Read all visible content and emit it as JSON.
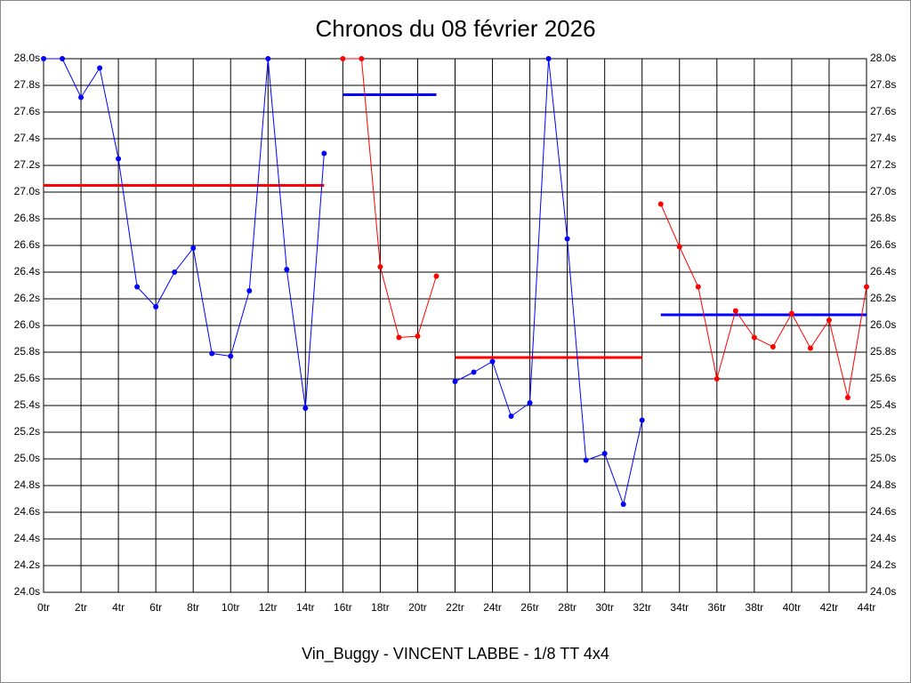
{
  "chart_data": {
    "type": "line",
    "title": "Chronos du 08 février 2026",
    "subtitle": "Vin_Buggy - VINCENT LABBE - 1/8 TT 4x4",
    "x": [
      0,
      1,
      2,
      3,
      4,
      5,
      6,
      7,
      8,
      9,
      10,
      11,
      12,
      13,
      14,
      15,
      16,
      17,
      18,
      19,
      20,
      21,
      22,
      23,
      24,
      25,
      26,
      27,
      28,
      29,
      30,
      31,
      32,
      33,
      34,
      35,
      36,
      37,
      38,
      39,
      40,
      41,
      42,
      43,
      44
    ],
    "series": [
      {
        "color": "#0000ff",
        "values": [
          28.0,
          28.0,
          27.71,
          27.93,
          27.25,
          26.29,
          26.14,
          26.4,
          26.58,
          25.79,
          25.77,
          26.26,
          28.0,
          26.42,
          25.38,
          27.29,
          null,
          null,
          null,
          null,
          null,
          null,
          25.58,
          25.65,
          25.73,
          25.32,
          25.42,
          28.0,
          26.65,
          24.99,
          25.04,
          24.66,
          25.29,
          null,
          null,
          null,
          null,
          null,
          null,
          null,
          null,
          null,
          null,
          null,
          null
        ]
      },
      {
        "color": "#ff0000",
        "values": [
          null,
          null,
          null,
          null,
          null,
          null,
          null,
          null,
          null,
          null,
          null,
          null,
          null,
          null,
          null,
          null,
          28.0,
          28.0,
          26.44,
          25.91,
          25.92,
          26.37,
          null,
          null,
          null,
          null,
          null,
          null,
          null,
          null,
          null,
          null,
          null,
          26.91,
          26.59,
          26.29,
          25.6,
          26.11,
          25.91,
          25.84,
          26.09,
          25.83,
          26.04,
          25.46,
          26.29
        ]
      }
    ],
    "averages": [
      {
        "color": "#ff0000",
        "value": 27.05,
        "x": [
          0,
          15
        ]
      },
      {
        "color": "#0000ff",
        "value": 27.73,
        "x": [
          16,
          21
        ]
      },
      {
        "color": "#ff0000",
        "value": 25.76,
        "x": [
          22,
          32
        ]
      },
      {
        "color": "#0000ff",
        "value": 26.08,
        "x": [
          33,
          44
        ]
      }
    ],
    "xlim": [
      0,
      44
    ],
    "xticks": [
      {
        "value": 0,
        "label": "0tr"
      },
      {
        "value": 2,
        "label": "2tr"
      },
      {
        "value": 4,
        "label": "4tr"
      },
      {
        "value": 6,
        "label": "6tr"
      },
      {
        "value": 8,
        "label": "8tr"
      },
      {
        "value": 10,
        "label": "10tr"
      },
      {
        "value": 12,
        "label": "12tr"
      },
      {
        "value": 14,
        "label": "14tr"
      },
      {
        "value": 16,
        "label": "16tr"
      },
      {
        "value": 18,
        "label": "18tr"
      },
      {
        "value": 20,
        "label": "20tr"
      },
      {
        "value": 22,
        "label": "22tr"
      },
      {
        "value": 24,
        "label": "24tr"
      },
      {
        "value": 26,
        "label": "26tr"
      },
      {
        "value": 28,
        "label": "28tr"
      },
      {
        "value": 30,
        "label": "30tr"
      },
      {
        "value": 32,
        "label": "32tr"
      },
      {
        "value": 34,
        "label": "34tr"
      },
      {
        "value": 36,
        "label": "36tr"
      },
      {
        "value": 38,
        "label": "38tr"
      },
      {
        "value": 40,
        "label": "40tr"
      },
      {
        "value": 42,
        "label": "42tr"
      },
      {
        "value": 44,
        "label": "44tr"
      }
    ],
    "ylim": [
      24.0,
      28.0
    ],
    "yticks": [
      {
        "value": 24.0,
        "label": "24.0s"
      },
      {
        "value": 24.2,
        "label": "24.2s"
      },
      {
        "value": 24.4,
        "label": "24.4s"
      },
      {
        "value": 24.6,
        "label": "24.6s"
      },
      {
        "value": 24.8,
        "label": "24.8s"
      },
      {
        "value": 25.0,
        "label": "25.0s"
      },
      {
        "value": 25.2,
        "label": "25.2s"
      },
      {
        "value": 25.4,
        "label": "25.4s"
      },
      {
        "value": 25.6,
        "label": "25.6s"
      },
      {
        "value": 25.8,
        "label": "25.8s"
      },
      {
        "value": 26.0,
        "label": "26.0s"
      },
      {
        "value": 26.2,
        "label": "26.2s"
      },
      {
        "value": 26.4,
        "label": "26.4s"
      },
      {
        "value": 26.6,
        "label": "26.6s"
      },
      {
        "value": 26.8,
        "label": "26.8s"
      },
      {
        "value": 27.0,
        "label": "27.0s"
      },
      {
        "value": 27.2,
        "label": "27.2s"
      },
      {
        "value": 27.4,
        "label": "27.4s"
      },
      {
        "value": 27.6,
        "label": "27.6s"
      },
      {
        "value": 27.8,
        "label": "27.8s"
      },
      {
        "value": 28.0,
        "label": "28.0s"
      }
    ],
    "grid": true
  }
}
